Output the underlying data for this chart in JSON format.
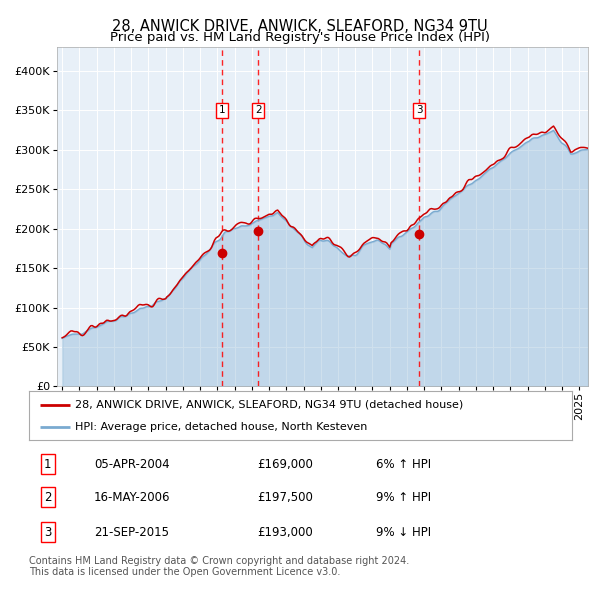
{
  "title": "28, ANWICK DRIVE, ANWICK, SLEAFORD, NG34 9TU",
  "subtitle": "Price paid vs. HM Land Registry's House Price Index (HPI)",
  "ytick_vals": [
    0,
    50000,
    100000,
    150000,
    200000,
    250000,
    300000,
    350000,
    400000
  ],
  "ylim": [
    0,
    430000
  ],
  "xlim_start": 1994.7,
  "xlim_end": 2025.5,
  "sale_dates": [
    2004.26,
    2006.37,
    2015.72
  ],
  "sale_prices": [
    169000,
    197500,
    193000
  ],
  "sale_labels": [
    "1",
    "2",
    "3"
  ],
  "sale_info": [
    {
      "num": "1",
      "date": "05-APR-2004",
      "price": "£169,000",
      "hpi": "6% ↑ HPI"
    },
    {
      "num": "2",
      "date": "16-MAY-2006",
      "price": "£197,500",
      "hpi": "9% ↑ HPI"
    },
    {
      "num": "3",
      "date": "21-SEP-2015",
      "price": "£193,000",
      "hpi": "9% ↓ HPI"
    }
  ],
  "legend_property": "28, ANWICK DRIVE, ANWICK, SLEAFORD, NG34 9TU (detached house)",
  "legend_hpi": "HPI: Average price, detached house, North Kesteven",
  "property_color": "#cc0000",
  "hpi_color": "#7aaad0",
  "hpi_fill_color": "#ddeeff",
  "background_color": "#e8f0f8",
  "grid_color": "#ffffff",
  "footnote": "Contains HM Land Registry data © Crown copyright and database right 2024.\nThis data is licensed under the Open Government Licence v3.0.",
  "title_fontsize": 10.5,
  "subtitle_fontsize": 9.5,
  "tick_fontsize": 8,
  "legend_fontsize": 8,
  "table_fontsize": 8.5,
  "footnote_fontsize": 7
}
